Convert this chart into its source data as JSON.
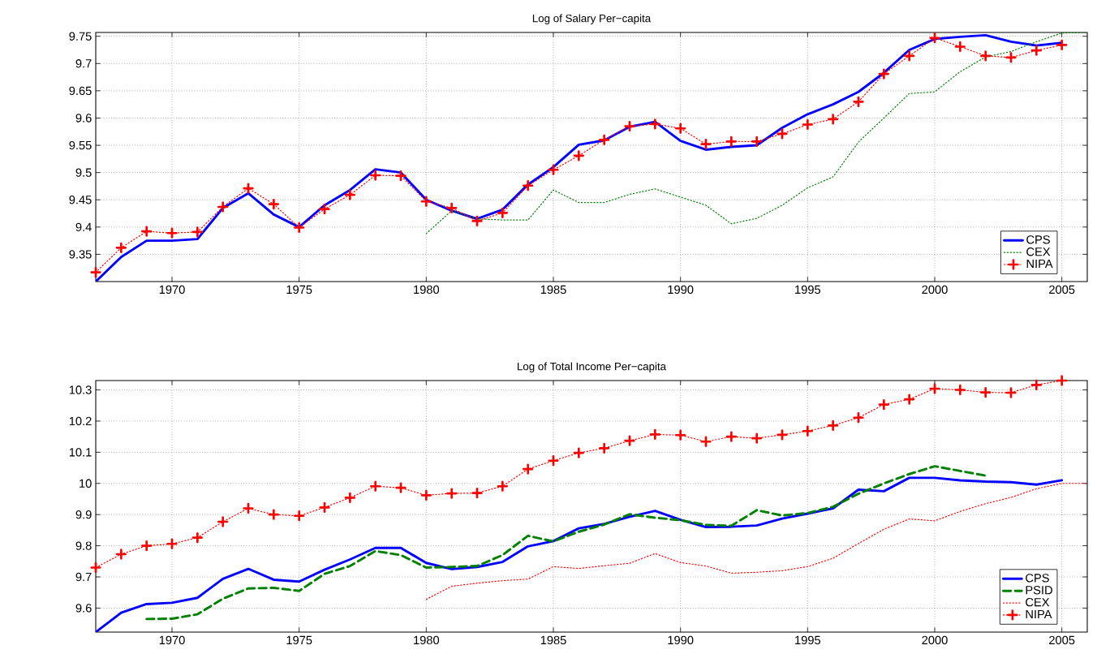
{
  "chart_data": [
    {
      "type": "line",
      "title": "Log of Salary Per−capita",
      "xlim": [
        1967,
        2006
      ],
      "ylim": [
        9.3,
        9.757
      ],
      "xticks": [
        1970,
        1975,
        1980,
        1985,
        1990,
        1995,
        2000,
        2005
      ],
      "yticks": [
        9.35,
        9.4,
        9.45,
        9.5,
        9.55,
        9.6,
        9.65,
        9.7,
        9.75
      ],
      "grid": true,
      "legend": "bottom right",
      "series": [
        {
          "name": "CPS",
          "color": "#0000ff",
          "line_style": "solid",
          "marker": "none",
          "x": [
            1967,
            1968,
            1969,
            1970,
            1971,
            1972,
            1973,
            1974,
            1975,
            1976,
            1977,
            1978,
            1979,
            1980,
            1981,
            1982,
            1983,
            1984,
            1985,
            1986,
            1987,
            1988,
            1989,
            1990,
            1991,
            1992,
            1993,
            1994,
            1995,
            1996,
            1997,
            1998,
            1999,
            2000,
            2001,
            2002,
            2003,
            2004,
            2005
          ],
          "values": [
            9.3,
            9.345,
            9.375,
            9.375,
            9.378,
            9.435,
            9.462,
            9.423,
            9.4,
            9.44,
            9.468,
            9.506,
            9.5,
            9.45,
            9.43,
            9.415,
            9.432,
            9.478,
            9.51,
            9.551,
            9.559,
            9.584,
            9.593,
            9.558,
            9.542,
            9.547,
            9.55,
            9.582,
            9.607,
            9.625,
            9.648,
            9.683,
            9.725,
            9.745,
            9.749,
            9.752,
            9.74,
            9.733,
            9.738
          ]
        },
        {
          "name": "CEX",
          "color": "#008000",
          "line_style": "dotted",
          "marker": "none",
          "x": [
            1980,
            1981,
            1982,
            1983,
            1984,
            1985,
            1986,
            1987,
            1988,
            1989,
            1990,
            1991,
            1992,
            1993,
            1994,
            1995,
            1996,
            1997,
            1998,
            1999,
            2000,
            2001,
            2002,
            2003,
            2004,
            2005,
            2006
          ],
          "values": [
            9.388,
            9.43,
            9.415,
            9.413,
            9.413,
            9.468,
            9.445,
            9.445,
            9.46,
            9.47,
            9.455,
            9.44,
            9.406,
            9.416,
            9.44,
            9.472,
            9.492,
            9.556,
            9.6,
            9.645,
            9.648,
            9.685,
            9.712,
            9.722,
            9.74,
            9.756,
            9.757
          ]
        },
        {
          "name": "NIPA",
          "color": "#ff0000",
          "line_style": "dotted",
          "marker": "cross",
          "x": [
            1967,
            1968,
            1969,
            1970,
            1971,
            1972,
            1973,
            1974,
            1975,
            1976,
            1977,
            1978,
            1979,
            1980,
            1981,
            1982,
            1983,
            1984,
            1985,
            1986,
            1987,
            1988,
            1989,
            1990,
            1991,
            1992,
            1993,
            1994,
            1995,
            1996,
            1997,
            1998,
            1999,
            2000,
            2001,
            2002,
            2003,
            2004,
            2005
          ],
          "values": [
            9.317,
            9.362,
            9.392,
            9.389,
            9.391,
            9.437,
            9.471,
            9.442,
            9.399,
            9.433,
            9.459,
            9.495,
            9.494,
            9.447,
            9.435,
            9.411,
            9.426,
            9.476,
            9.505,
            9.531,
            9.56,
            9.585,
            9.589,
            9.581,
            9.552,
            9.557,
            9.557,
            9.571,
            9.588,
            9.598,
            9.63,
            9.681,
            9.714,
            9.747,
            9.731,
            9.714,
            9.711,
            9.724,
            9.734
          ]
        }
      ]
    },
    {
      "type": "line",
      "title": "Log of Total Income Per−capita",
      "xlim": [
        1967,
        2006
      ],
      "ylim": [
        9.523,
        10.33
      ],
      "xticks": [
        1970,
        1975,
        1980,
        1985,
        1990,
        1995,
        2000,
        2005
      ],
      "yticks": [
        9.6,
        9.7,
        9.8,
        9.9,
        10,
        10.1,
        10.2,
        10.3
      ],
      "grid": true,
      "legend": "bottom right",
      "series": [
        {
          "name": "CPS",
          "color": "#0000ff",
          "line_style": "solid",
          "marker": "none",
          "x": [
            1967,
            1968,
            1969,
            1970,
            1971,
            1972,
            1973,
            1974,
            1975,
            1976,
            1977,
            1978,
            1979,
            1980,
            1981,
            1982,
            1983,
            1984,
            1985,
            1986,
            1987,
            1988,
            1989,
            1990,
            1991,
            1992,
            1993,
            1994,
            1995,
            1996,
            1997,
            1998,
            1999,
            2000,
            2001,
            2002,
            2003,
            2004,
            2005
          ],
          "values": [
            9.523,
            9.585,
            9.613,
            9.617,
            9.633,
            9.694,
            9.726,
            9.691,
            9.685,
            9.723,
            9.756,
            9.793,
            9.793,
            9.745,
            9.725,
            9.732,
            9.748,
            9.798,
            9.815,
            9.856,
            9.87,
            9.893,
            9.912,
            9.883,
            9.86,
            9.861,
            9.865,
            9.887,
            9.903,
            9.92,
            9.98,
            9.975,
            10.018,
            10.018,
            10.01,
            10.006,
            10.004,
            9.996,
            10.01
          ]
        },
        {
          "name": "PSID",
          "color": "#008000",
          "line_style": "dashed",
          "marker": "none",
          "x": [
            1969,
            1970,
            1971,
            1972,
            1973,
            1974,
            1975,
            1976,
            1977,
            1978,
            1979,
            1980,
            1981,
            1982,
            1983,
            1984,
            1985,
            1986,
            1987,
            1988,
            1989,
            1990,
            1991,
            1992,
            1993,
            1994,
            1995,
            1996,
            1997,
            1998,
            1999,
            2000,
            2001,
            2002
          ],
          "values": [
            9.565,
            9.566,
            9.58,
            9.63,
            9.663,
            9.665,
            9.655,
            9.71,
            9.735,
            9.783,
            9.77,
            9.73,
            9.732,
            9.735,
            9.77,
            9.832,
            9.814,
            9.845,
            9.868,
            9.901,
            9.89,
            9.882,
            9.867,
            9.864,
            9.914,
            9.897,
            9.905,
            9.925,
            9.967,
            10.0,
            10.03,
            10.055,
            10.04,
            10.025
          ]
        },
        {
          "name": "CEX",
          "color": "#ff0000",
          "line_style": "dotted",
          "marker": "none",
          "x": [
            1980,
            1981,
            1982,
            1983,
            1984,
            1985,
            1986,
            1987,
            1988,
            1989,
            1990,
            1991,
            1992,
            1993,
            1994,
            1995,
            1996,
            1997,
            1998,
            1999,
            2000,
            2001,
            2002,
            2003,
            2004,
            2005,
            2006
          ],
          "values": [
            9.628,
            9.67,
            9.68,
            9.688,
            9.693,
            9.733,
            9.727,
            9.736,
            9.744,
            9.775,
            9.746,
            9.735,
            9.712,
            9.715,
            9.72,
            9.733,
            9.76,
            9.807,
            9.853,
            9.886,
            9.88,
            9.91,
            9.935,
            9.955,
            9.983,
            10.0,
            10.0
          ]
        },
        {
          "name": "NIPA",
          "color": "#ff0000",
          "line_style": "dotted",
          "marker": "cross",
          "x": [
            1967,
            1968,
            1969,
            1970,
            1971,
            1972,
            1973,
            1974,
            1975,
            1976,
            1977,
            1978,
            1979,
            1980,
            1981,
            1982,
            1983,
            1984,
            1985,
            1986,
            1987,
            1988,
            1989,
            1990,
            1991,
            1992,
            1993,
            1994,
            1995,
            1996,
            1997,
            1998,
            1999,
            2000,
            2001,
            2002,
            2003,
            2004,
            2005
          ],
          "values": [
            9.73,
            9.773,
            9.8,
            9.806,
            9.826,
            9.877,
            9.92,
            9.9,
            9.896,
            9.923,
            9.954,
            9.991,
            9.986,
            9.962,
            9.968,
            9.969,
            9.991,
            10.046,
            10.073,
            10.098,
            10.113,
            10.137,
            10.157,
            10.155,
            10.134,
            10.15,
            10.145,
            10.156,
            10.168,
            10.186,
            10.211,
            10.253,
            10.27,
            10.304,
            10.3,
            10.292,
            10.291,
            10.316,
            10.33
          ]
        }
      ]
    }
  ]
}
